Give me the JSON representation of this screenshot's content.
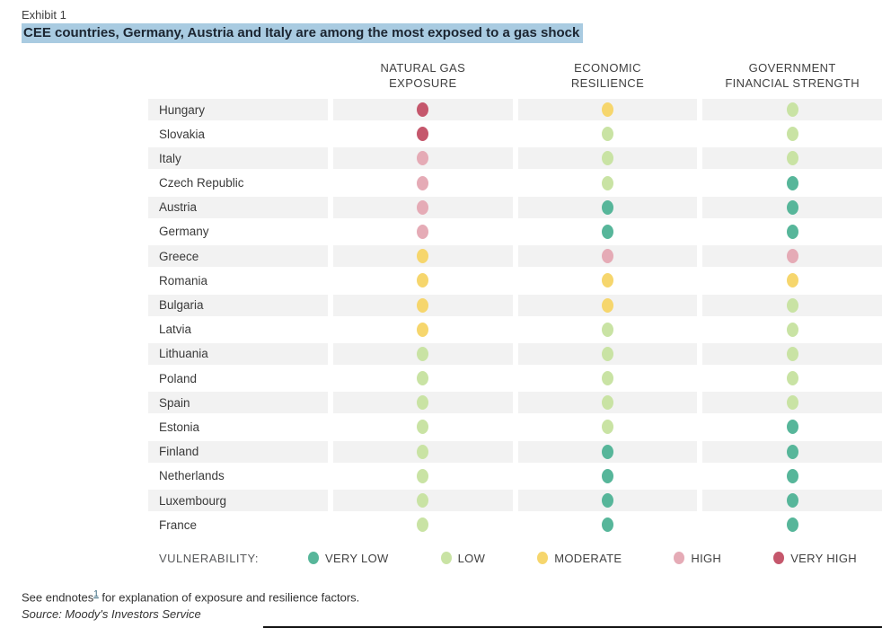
{
  "exhibit_label": "Exhibit 1",
  "title": "CEE countries, Germany, Austria and Italy are among the most exposed to a gas shock",
  "colors": {
    "title_highlight": "#a9cbe1",
    "row_stripe": "#f2f2f2"
  },
  "table": {
    "column_headers": [
      {
        "line1": "NATURAL GAS",
        "line2": "EXPOSURE"
      },
      {
        "line1": "ECONOMIC",
        "line2": "RESILIENCE"
      },
      {
        "line1": "GOVERNMENT",
        "line2": "FINANCIAL STRENGTH"
      }
    ]
  },
  "legend": {
    "label": "VULNERABILITY:",
    "levels": [
      {
        "label": "VERY LOW",
        "color": "#57b69a"
      },
      {
        "label": "LOW",
        "color": "#c9e3a4"
      },
      {
        "label": "MODERATE",
        "color": "#f6d66d"
      },
      {
        "label": "HIGH",
        "color": "#e5abb6"
      },
      {
        "label": "VERY HIGH",
        "color": "#c5576c"
      }
    ]
  },
  "footnotes": {
    "endnote_prefix": "See endnotes",
    "endnote_ref": "1",
    "endnote_suffix": " for explanation of exposure and resilience factors.",
    "source": "Source: Moody's Investors Service"
  },
  "chart_data": {
    "type": "heatmap",
    "title": "CEE countries, Germany, Austria and Italy are among the most exposed to a gas shock",
    "categories": [
      "NATURAL GAS EXPOSURE",
      "ECONOMIC RESILIENCE",
      "GOVERNMENT FINANCIAL STRENGTH"
    ],
    "scale": [
      "VERY LOW",
      "LOW",
      "MODERATE",
      "HIGH",
      "VERY HIGH"
    ],
    "legend_position": "bottom",
    "rows": [
      {
        "country": "Hungary",
        "values": [
          "VERY HIGH",
          "MODERATE",
          "LOW"
        ]
      },
      {
        "country": "Slovakia",
        "values": [
          "VERY HIGH",
          "LOW",
          "LOW"
        ]
      },
      {
        "country": "Italy",
        "values": [
          "HIGH",
          "LOW",
          "LOW"
        ]
      },
      {
        "country": "Czech Republic",
        "values": [
          "HIGH",
          "LOW",
          "VERY LOW"
        ]
      },
      {
        "country": "Austria",
        "values": [
          "HIGH",
          "VERY LOW",
          "VERY LOW"
        ]
      },
      {
        "country": "Germany",
        "values": [
          "HIGH",
          "VERY LOW",
          "VERY LOW"
        ]
      },
      {
        "country": "Greece",
        "values": [
          "MODERATE",
          "HIGH",
          "HIGH"
        ]
      },
      {
        "country": "Romania",
        "values": [
          "MODERATE",
          "MODERATE",
          "MODERATE"
        ]
      },
      {
        "country": "Bulgaria",
        "values": [
          "MODERATE",
          "MODERATE",
          "LOW"
        ]
      },
      {
        "country": "Latvia",
        "values": [
          "MODERATE",
          "LOW",
          "LOW"
        ]
      },
      {
        "country": "Lithuania",
        "values": [
          "LOW",
          "LOW",
          "LOW"
        ]
      },
      {
        "country": "Poland",
        "values": [
          "LOW",
          "LOW",
          "LOW"
        ]
      },
      {
        "country": "Spain",
        "values": [
          "LOW",
          "LOW",
          "LOW"
        ]
      },
      {
        "country": "Estonia",
        "values": [
          "LOW",
          "LOW",
          "VERY LOW"
        ]
      },
      {
        "country": "Finland",
        "values": [
          "LOW",
          "VERY LOW",
          "VERY LOW"
        ]
      },
      {
        "country": "Netherlands",
        "values": [
          "LOW",
          "VERY LOW",
          "VERY LOW"
        ]
      },
      {
        "country": "Luxembourg",
        "values": [
          "LOW",
          "VERY LOW",
          "VERY LOW"
        ]
      },
      {
        "country": "France",
        "values": [
          "LOW",
          "VERY LOW",
          "VERY LOW"
        ]
      }
    ]
  }
}
